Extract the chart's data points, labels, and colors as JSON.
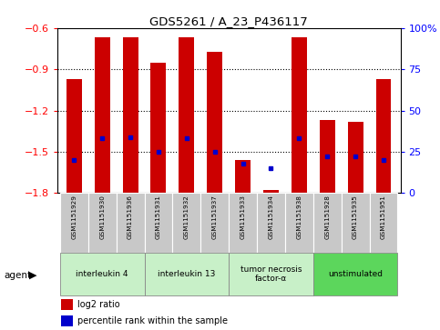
{
  "title": "GDS5261 / A_23_P436117",
  "samples": [
    "GSM1151929",
    "GSM1151930",
    "GSM1151936",
    "GSM1151931",
    "GSM1151932",
    "GSM1151937",
    "GSM1151933",
    "GSM1151934",
    "GSM1151938",
    "GSM1151928",
    "GSM1151935",
    "GSM1151951"
  ],
  "log2_ratio": [
    -0.97,
    -0.67,
    -0.67,
    -0.85,
    -0.67,
    -0.77,
    -1.56,
    -1.78,
    -0.67,
    -1.27,
    -1.28,
    -0.97
  ],
  "percentile": [
    20,
    33,
    34,
    25,
    33,
    25,
    18,
    15,
    33,
    22,
    22,
    20
  ],
  "ylim_min": -1.8,
  "ylim_max": -0.6,
  "y_ticks_left": [
    -1.8,
    -1.5,
    -1.2,
    -0.9,
    -0.6
  ],
  "y_ticks_right": [
    0,
    25,
    50,
    75,
    100
  ],
  "groups": [
    {
      "label": "interleukin 4",
      "start": 0,
      "end": 3,
      "color": "#c8f0c8"
    },
    {
      "label": "interleukin 13",
      "start": 3,
      "end": 6,
      "color": "#c8f0c8"
    },
    {
      "label": "tumor necrosis\nfactor-α",
      "start": 6,
      "end": 9,
      "color": "#c8f0c8"
    },
    {
      "label": "unstimulated",
      "start": 9,
      "end": 12,
      "color": "#5cd65c"
    }
  ],
  "bar_color": "#cc0000",
  "dot_color": "#0000cc",
  "tick_bg": "#c8c8c8",
  "agent_label": "agent",
  "legend_log2": "log2 ratio",
  "legend_pct": "percentile rank within the sample"
}
